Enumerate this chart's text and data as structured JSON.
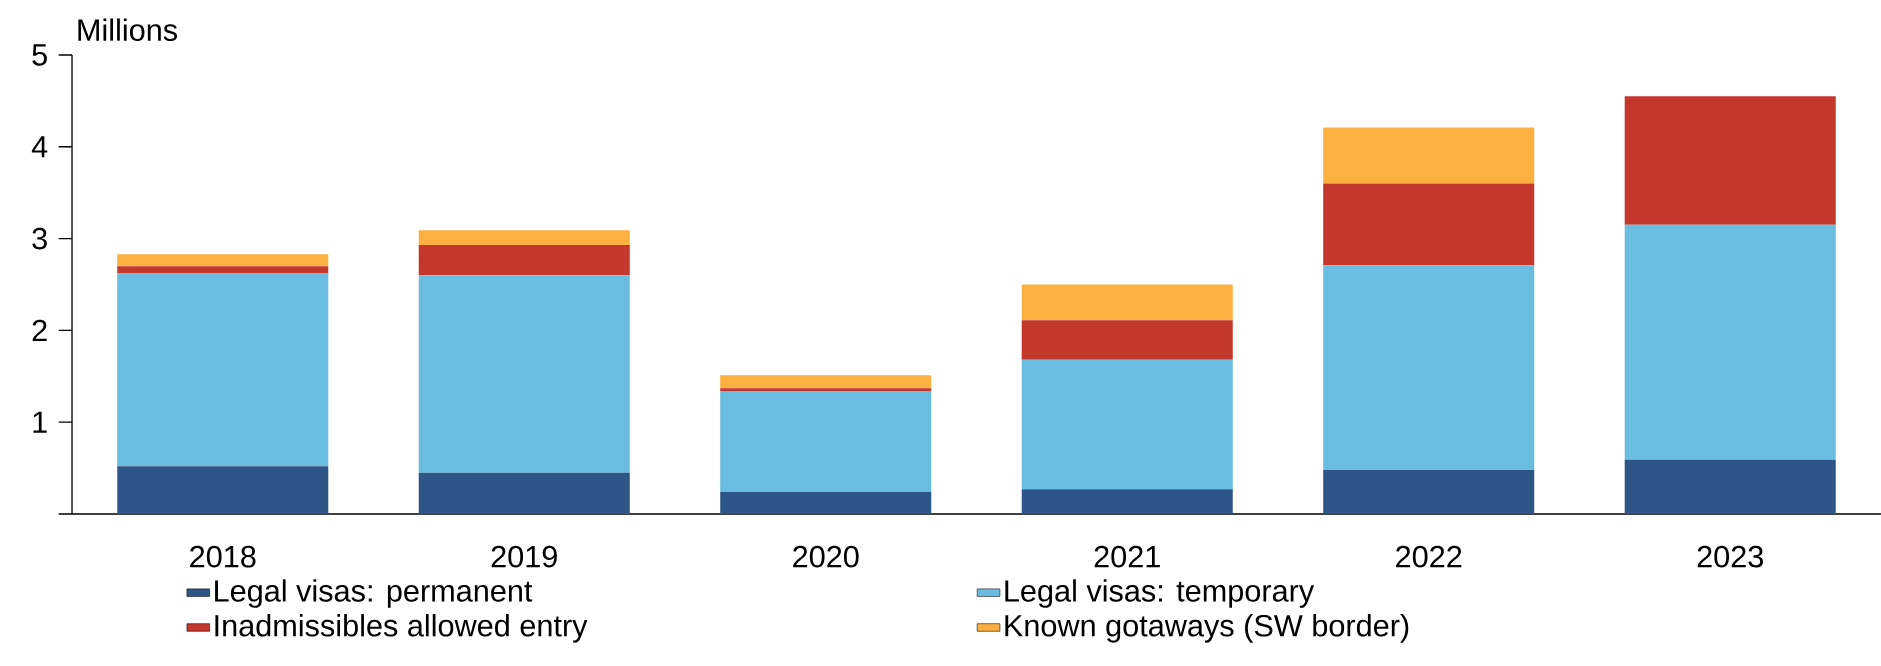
{
  "chart_data": {
    "type": "bar",
    "stacked": true,
    "ylabel": "Millions",
    "categories": [
      "2018",
      "2019",
      "2020",
      "2021",
      "2022",
      "2023"
    ],
    "series": [
      {
        "name": "Legal visas: permanent",
        "color": "#2d5587",
        "values": [
          0.52,
          0.45,
          0.24,
          0.27,
          0.48,
          0.59
        ]
      },
      {
        "name": "Legal visas: temporary",
        "color": "#6bbde0",
        "values": [
          2.1,
          2.15,
          1.1,
          1.41,
          2.23,
          2.56
        ]
      },
      {
        "name": "Inadmissibles allowed entry",
        "color": "#c4372d",
        "values": [
          0.08,
          0.33,
          0.03,
          0.43,
          0.89,
          1.4
        ]
      },
      {
        "name": "Known gotaways (SW border)",
        "color": "#fbb040",
        "values": [
          0.13,
          0.16,
          0.14,
          0.39,
          0.61,
          null
        ]
      }
    ],
    "ylim": [
      0,
      5
    ],
    "yticks": [
      {
        "value": 0,
        "label": null
      },
      1,
      2,
      3,
      4,
      5
    ],
    "grid": false,
    "legend": "bottom"
  }
}
